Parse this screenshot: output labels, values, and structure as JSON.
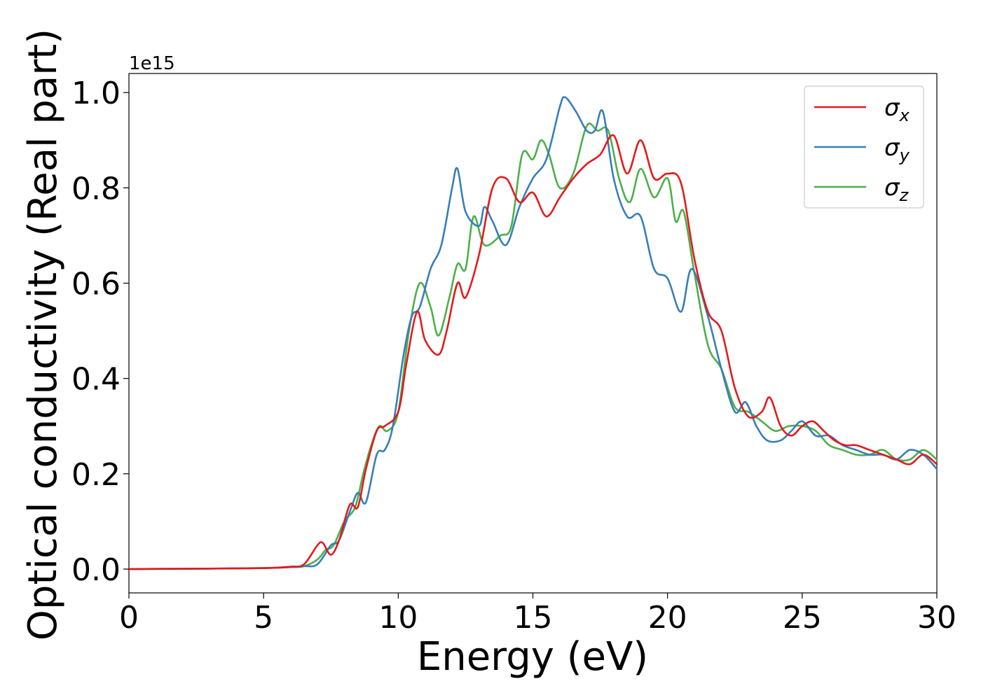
{
  "chart_data": {
    "type": "line",
    "title": "",
    "xlabel": "Energy (eV)",
    "ylabel": "Optical conductivity (Real part)",
    "y_offset_text": "1e15",
    "xlim": [
      0,
      30
    ],
    "ylim": [
      -0.05,
      1.04
    ],
    "x_ticks": [
      0,
      5,
      10,
      15,
      20,
      25,
      30
    ],
    "x_tick_labels": [
      "0",
      "5",
      "10",
      "15",
      "20",
      "25",
      "30"
    ],
    "y_ticks": [
      0.0,
      0.2,
      0.4,
      0.6,
      0.8,
      1.0
    ],
    "y_tick_labels": [
      "0.0",
      "0.2",
      "0.4",
      "0.6",
      "0.8",
      "1.0"
    ],
    "grid": false,
    "legend": "top-right",
    "series": [
      {
        "name": "σ",
        "sub": "x",
        "color": "#e41a1c",
        "x": [
          0,
          3,
          5,
          6,
          6.5,
          7.0,
          7.2,
          7.5,
          7.8,
          8.2,
          8.5,
          8.8,
          9.2,
          9.5,
          10.0,
          10.3,
          10.7,
          11.0,
          11.5,
          11.8,
          12.2,
          12.5,
          13.0,
          13.5,
          14.0,
          14.5,
          15.0,
          15.5,
          16.0,
          16.5,
          17.0,
          17.5,
          18.0,
          18.5,
          19.0,
          19.5,
          20.0,
          20.5,
          21.0,
          21.5,
          22.0,
          22.5,
          23.0,
          23.5,
          23.8,
          24.2,
          24.6,
          25.0,
          25.4,
          25.8,
          26.2,
          26.6,
          27.0,
          27.5,
          28.0,
          28.5,
          29.0,
          29.5,
          30.0
        ],
        "y": [
          0.0,
          0.001,
          0.002,
          0.005,
          0.01,
          0.05,
          0.055,
          0.03,
          0.06,
          0.135,
          0.13,
          0.21,
          0.29,
          0.3,
          0.33,
          0.43,
          0.54,
          0.48,
          0.45,
          0.5,
          0.6,
          0.57,
          0.66,
          0.8,
          0.82,
          0.77,
          0.79,
          0.74,
          0.78,
          0.82,
          0.85,
          0.87,
          0.91,
          0.83,
          0.9,
          0.82,
          0.83,
          0.81,
          0.65,
          0.54,
          0.5,
          0.38,
          0.32,
          0.33,
          0.36,
          0.3,
          0.28,
          0.3,
          0.31,
          0.29,
          0.27,
          0.26,
          0.26,
          0.25,
          0.24,
          0.23,
          0.22,
          0.24,
          0.22
        ]
      },
      {
        "name": "σ",
        "sub": "y",
        "color": "#377eb8",
        "x": [
          0,
          3,
          5,
          6,
          6.5,
          7.0,
          7.5,
          7.8,
          8.2,
          8.5,
          8.8,
          9.2,
          9.5,
          9.8,
          10.2,
          10.5,
          10.8,
          11.2,
          11.6,
          12.0,
          12.2,
          12.5,
          13.0,
          13.2,
          13.5,
          14.0,
          14.5,
          15.0,
          15.5,
          16.0,
          16.2,
          16.6,
          17.0,
          17.3,
          17.6,
          18.0,
          18.5,
          19.0,
          19.5,
          20.0,
          20.5,
          20.9,
          21.5,
          22.0,
          22.5,
          22.9,
          23.3,
          23.7,
          24.2,
          24.6,
          25.0,
          25.5,
          26.0,
          26.5,
          27.0,
          27.5,
          28.0,
          28.5,
          29.0,
          29.5,
          30.0
        ],
        "y": [
          0.0,
          0.001,
          0.002,
          0.004,
          0.006,
          0.01,
          0.05,
          0.06,
          0.12,
          0.16,
          0.14,
          0.24,
          0.25,
          0.3,
          0.45,
          0.53,
          0.55,
          0.63,
          0.68,
          0.8,
          0.84,
          0.75,
          0.72,
          0.76,
          0.73,
          0.68,
          0.76,
          0.82,
          0.86,
          0.97,
          0.99,
          0.96,
          0.92,
          0.92,
          0.96,
          0.82,
          0.74,
          0.74,
          0.63,
          0.61,
          0.54,
          0.63,
          0.53,
          0.42,
          0.33,
          0.35,
          0.3,
          0.27,
          0.27,
          0.29,
          0.31,
          0.28,
          0.28,
          0.26,
          0.25,
          0.24,
          0.24,
          0.23,
          0.25,
          0.24,
          0.21
        ]
      },
      {
        "name": "σ",
        "sub": "z",
        "color": "#4daf4a",
        "x": [
          0,
          3,
          5,
          6,
          6.5,
          7.0,
          7.3,
          7.6,
          8.0,
          8.4,
          8.7,
          9.0,
          9.3,
          9.6,
          10.0,
          10.4,
          10.8,
          11.2,
          11.5,
          11.9,
          12.2,
          12.5,
          12.8,
          13.2,
          13.8,
          14.2,
          14.6,
          15.0,
          15.3,
          15.6,
          16.0,
          16.5,
          17.0,
          17.4,
          17.8,
          18.2,
          18.6,
          19.0,
          19.5,
          20.0,
          20.3,
          20.6,
          21.0,
          21.5,
          22.0,
          22.5,
          23.0,
          23.5,
          24.0,
          24.5,
          25.0,
          25.5,
          26.0,
          26.5,
          27.0,
          27.5,
          28.0,
          28.5,
          29.0,
          29.5,
          30.0
        ],
        "y": [
          0.0,
          0.001,
          0.002,
          0.004,
          0.006,
          0.02,
          0.04,
          0.05,
          0.1,
          0.13,
          0.2,
          0.26,
          0.3,
          0.29,
          0.33,
          0.5,
          0.6,
          0.55,
          0.49,
          0.57,
          0.64,
          0.63,
          0.74,
          0.68,
          0.7,
          0.72,
          0.87,
          0.86,
          0.9,
          0.87,
          0.8,
          0.83,
          0.93,
          0.92,
          0.92,
          0.82,
          0.77,
          0.84,
          0.78,
          0.82,
          0.73,
          0.75,
          0.62,
          0.47,
          0.42,
          0.34,
          0.33,
          0.31,
          0.29,
          0.3,
          0.3,
          0.29,
          0.26,
          0.25,
          0.24,
          0.24,
          0.25,
          0.23,
          0.23,
          0.25,
          0.23
        ]
      }
    ]
  }
}
